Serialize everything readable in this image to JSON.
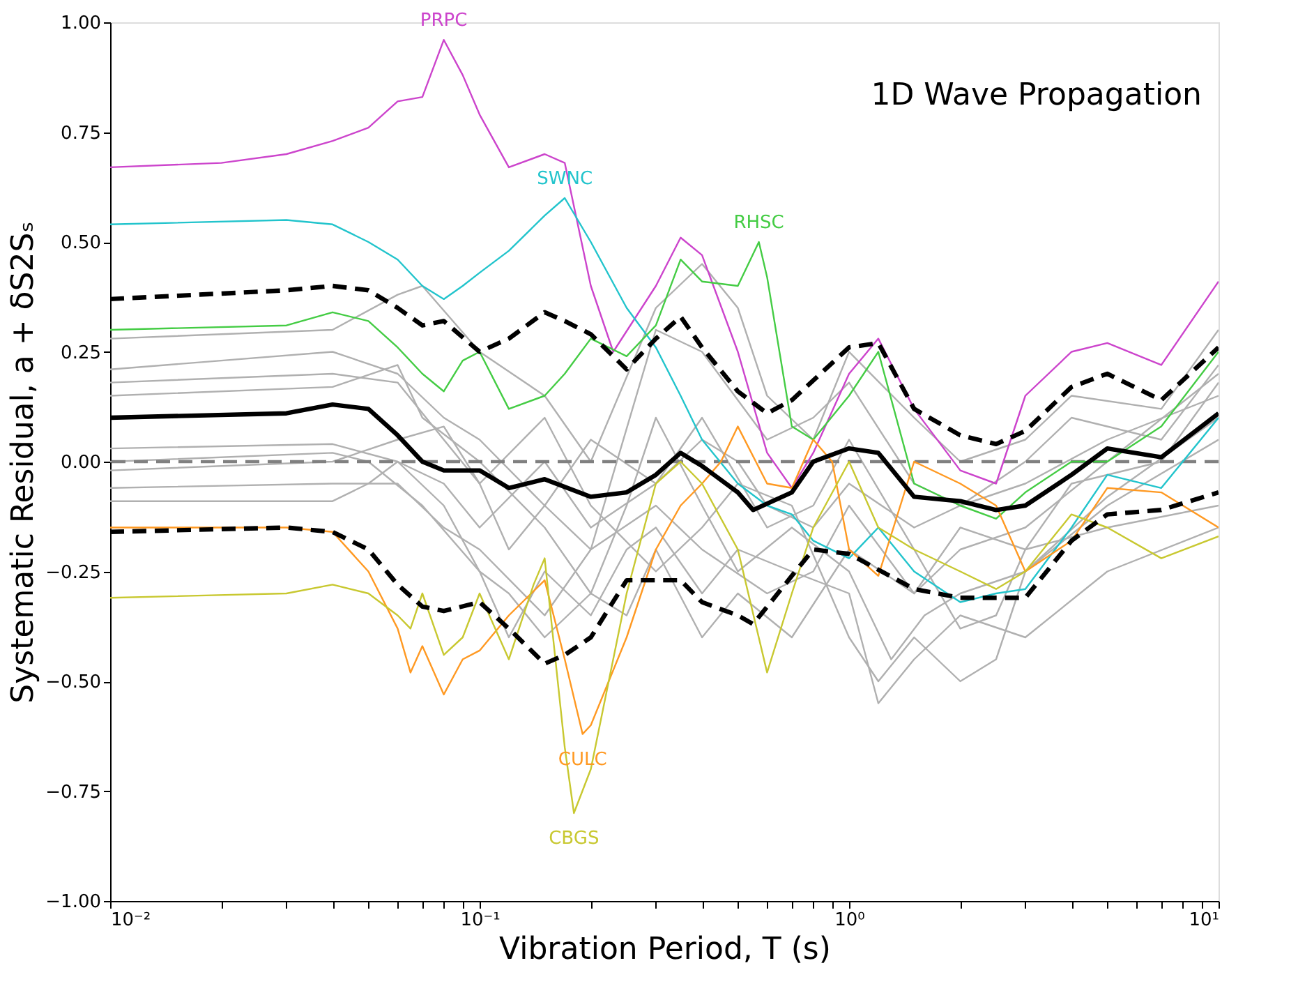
{
  "chart_data": {
    "type": "line",
    "xlabel": "Vibration Period, T (s)",
    "ylabel": "Systematic Residual, a + δS2Sₛ",
    "annotations": [
      "1D Wave Propagation"
    ],
    "log": "x",
    "grid": false,
    "marker": "none",
    "xlim": [
      0.01,
      10
    ],
    "xticks": [
      {
        "value": 0.01,
        "label": "10⁻²"
      },
      {
        "value": 0.02,
        "label": null
      },
      {
        "value": 0.03,
        "label": null
      },
      {
        "value": 0.04,
        "label": null
      },
      {
        "value": 0.05,
        "label": null
      },
      {
        "value": 0.06,
        "label": null
      },
      {
        "value": 0.07,
        "label": null
      },
      {
        "value": 0.08,
        "label": null
      },
      {
        "value": 0.09,
        "label": null
      },
      {
        "value": 0.1,
        "label": "10⁻¹"
      },
      {
        "value": 0.2,
        "label": null
      },
      {
        "value": 0.3,
        "label": null
      },
      {
        "value": 0.4,
        "label": null
      },
      {
        "value": 0.5,
        "label": null
      },
      {
        "value": 0.6,
        "label": null
      },
      {
        "value": 0.7,
        "label": null
      },
      {
        "value": 0.8,
        "label": null
      },
      {
        "value": 0.9,
        "label": null
      },
      {
        "value": 1,
        "label": "10⁰"
      },
      {
        "value": 2,
        "label": null
      },
      {
        "value": 3,
        "label": null
      },
      {
        "value": 4,
        "label": null
      },
      {
        "value": 5,
        "label": null
      },
      {
        "value": 6,
        "label": null
      },
      {
        "value": 7,
        "label": null
      },
      {
        "value": 8,
        "label": null
      },
      {
        "value": 9,
        "label": null
      },
      {
        "value": 10,
        "label": "10¹"
      }
    ],
    "ylim": [
      -1,
      1
    ],
    "yticks": [
      {
        "value": -1,
        "label": "−1.00"
      },
      {
        "value": -0.75,
        "label": "−0.75"
      },
      {
        "value": -0.5,
        "label": "−0.50"
      },
      {
        "value": -0.25,
        "label": "−0.25"
      },
      {
        "value": 0,
        "label": "0.00"
      },
      {
        "value": 0.25,
        "label": "0.25"
      },
      {
        "value": 0.5,
        "label": "0.50"
      },
      {
        "value": 0.75,
        "label": "0.75"
      },
      {
        "value": 1,
        "label": "1.00"
      }
    ],
    "ref_lines": [
      {
        "axis": "y",
        "value": 0,
        "color": "#808080",
        "line_style": "dashed"
      }
    ],
    "series": [
      {
        "color": "#b0b0b0",
        "x": [
          0.01,
          0.04,
          0.06,
          0.07,
          0.1,
          0.15,
          0.2,
          0.3,
          0.4,
          0.5,
          0.6,
          0.8,
          1.0,
          1.5,
          2,
          3,
          4,
          7,
          10
        ],
        "values": [
          0.28,
          0.3,
          0.38,
          0.4,
          0.25,
          0.15,
          0.0,
          0.35,
          0.45,
          0.35,
          0.15,
          0.05,
          0.25,
          0.1,
          0.0,
          0.05,
          0.15,
          0.12,
          0.3
        ]
      },
      {
        "color": "#b0b0b0",
        "x": [
          0.01,
          0.04,
          0.06,
          0.08,
          0.1,
          0.15,
          0.2,
          0.3,
          0.4,
          0.6,
          0.8,
          1.0,
          1.5,
          2,
          3,
          4,
          7,
          10
        ],
        "values": [
          0.21,
          0.25,
          0.2,
          0.1,
          0.05,
          -0.1,
          -0.2,
          0.3,
          0.25,
          0.05,
          0.1,
          0.18,
          -0.05,
          -0.1,
          0.0,
          0.1,
          0.05,
          0.22
        ]
      },
      {
        "color": "#b0b0b0",
        "x": [
          0.01,
          0.04,
          0.06,
          0.08,
          0.1,
          0.12,
          0.15,
          0.2,
          0.3,
          0.4,
          0.6,
          0.8,
          1.0,
          1.5,
          2,
          2.5,
          3,
          4,
          7,
          10
        ],
        "values": [
          0.18,
          0.2,
          0.18,
          0.05,
          -0.05,
          -0.2,
          -0.1,
          0.05,
          -0.05,
          0.1,
          -0.15,
          -0.1,
          0.05,
          -0.2,
          -0.38,
          -0.35,
          -0.2,
          -0.05,
          0.0,
          0.18
        ]
      },
      {
        "color": "#b0b0b0",
        "x": [
          0.01,
          0.04,
          0.06,
          0.07,
          0.1,
          0.15,
          0.2,
          0.25,
          0.3,
          0.4,
          0.5,
          0.7,
          1.0,
          1.3,
          1.6,
          2,
          3,
          5,
          10
        ],
        "values": [
          0.15,
          0.17,
          0.22,
          0.1,
          0.0,
          -0.15,
          -0.3,
          -0.1,
          0.1,
          -0.1,
          -0.25,
          -0.15,
          -0.25,
          -0.45,
          -0.35,
          -0.3,
          -0.25,
          -0.1,
          0.05
        ]
      },
      {
        "color": "#b0b0b0",
        "x": [
          0.01,
          0.04,
          0.06,
          0.08,
          0.1,
          0.12,
          0.15,
          0.2,
          0.25,
          0.3,
          0.4,
          0.5,
          0.7,
          1.0,
          1.2,
          1.5,
          2,
          3,
          5,
          10
        ],
        "values": [
          0.03,
          0.04,
          0.0,
          -0.1,
          -0.25,
          -0.4,
          -0.25,
          -0.35,
          -0.2,
          -0.15,
          -0.3,
          -0.2,
          -0.25,
          -0.3,
          -0.55,
          -0.45,
          -0.35,
          -0.4,
          -0.25,
          -0.15
        ]
      },
      {
        "color": "#b0b0b0",
        "x": [
          0.01,
          0.04,
          0.06,
          0.08,
          0.1,
          0.15,
          0.2,
          0.3,
          0.4,
          0.5,
          0.7,
          1.0,
          1.2,
          1.5,
          2,
          2.5,
          3,
          5,
          10
        ],
        "values": [
          -0.02,
          0.0,
          0.05,
          0.08,
          -0.05,
          0.1,
          -0.1,
          -0.25,
          -0.15,
          -0.05,
          -0.1,
          -0.4,
          -0.5,
          -0.4,
          -0.5,
          -0.45,
          -0.25,
          -0.08,
          0.1
        ]
      },
      {
        "color": "#b0b0b0",
        "x": [
          0.01,
          0.04,
          0.06,
          0.08,
          0.1,
          0.15,
          0.2,
          0.3,
          0.4,
          0.6,
          0.8,
          1.0,
          1.5,
          2,
          3,
          5,
          10
        ],
        "values": [
          -0.06,
          -0.05,
          -0.05,
          -0.15,
          -0.2,
          -0.35,
          -0.2,
          -0.1,
          -0.2,
          -0.3,
          -0.25,
          -0.1,
          -0.3,
          -0.2,
          -0.15,
          0.0,
          0.2
        ]
      },
      {
        "color": "#b0b0b0",
        "x": [
          0.01,
          0.04,
          0.05,
          0.06,
          0.08,
          0.1,
          0.15,
          0.2,
          0.3,
          0.4,
          0.5,
          0.6,
          0.8,
          1.0,
          1.5,
          2,
          3,
          5,
          10
        ],
        "values": [
          -0.09,
          -0.09,
          -0.05,
          0.0,
          -0.05,
          -0.15,
          0.0,
          -0.15,
          -0.05,
          0.05,
          0.0,
          -0.1,
          -0.15,
          -0.05,
          -0.15,
          -0.1,
          -0.05,
          0.05,
          0.15
        ]
      },
      {
        "color": "#b0b0b0",
        "x": [
          0.01,
          0.04,
          0.05,
          0.07,
          0.1,
          0.12,
          0.15,
          0.2,
          0.25,
          0.3,
          0.4,
          0.5,
          0.7,
          1.0,
          1.5,
          2,
          3,
          5,
          10
        ],
        "values": [
          0.0,
          0.02,
          0.0,
          -0.1,
          -0.25,
          -0.3,
          -0.4,
          -0.3,
          -0.35,
          -0.2,
          -0.4,
          -0.3,
          -0.4,
          -0.2,
          -0.3,
          -0.15,
          -0.2,
          -0.15,
          -0.1
        ]
      },
      {
        "name": "PRPC",
        "color": "#cc44cc",
        "x": [
          0.01,
          0.02,
          0.03,
          0.04,
          0.05,
          0.06,
          0.07,
          0.08,
          0.09,
          0.1,
          0.12,
          0.15,
          0.17,
          0.2,
          0.23,
          0.3,
          0.35,
          0.4,
          0.5,
          0.6,
          0.7,
          0.8,
          1.0,
          1.2,
          1.5,
          2,
          2.5,
          3,
          4,
          5,
          7,
          10
        ],
        "values": [
          0.67,
          0.68,
          0.7,
          0.73,
          0.76,
          0.82,
          0.83,
          0.96,
          0.88,
          0.79,
          0.67,
          0.7,
          0.68,
          0.4,
          0.25,
          0.4,
          0.51,
          0.47,
          0.25,
          0.02,
          -0.06,
          0.02,
          0.2,
          0.28,
          0.12,
          -0.02,
          -0.05,
          0.15,
          0.25,
          0.27,
          0.22,
          0.41
        ]
      },
      {
        "name": "SWNC",
        "color": "#22c4cc",
        "x": [
          0.01,
          0.03,
          0.04,
          0.05,
          0.06,
          0.07,
          0.08,
          0.09,
          0.1,
          0.12,
          0.15,
          0.17,
          0.2,
          0.25,
          0.3,
          0.35,
          0.4,
          0.5,
          0.6,
          0.7,
          0.8,
          1.0,
          1.2,
          1.5,
          2,
          2.5,
          3,
          4,
          5,
          7,
          10
        ],
        "values": [
          0.54,
          0.55,
          0.54,
          0.5,
          0.46,
          0.4,
          0.37,
          0.4,
          0.43,
          0.48,
          0.56,
          0.6,
          0.5,
          0.35,
          0.26,
          0.15,
          0.05,
          -0.05,
          -0.1,
          -0.12,
          -0.18,
          -0.22,
          -0.15,
          -0.25,
          -0.32,
          -0.3,
          -0.29,
          -0.15,
          -0.03,
          -0.06,
          0.1
        ]
      },
      {
        "name": "RHSC",
        "color": "#44cc44",
        "x": [
          0.01,
          0.03,
          0.04,
          0.05,
          0.06,
          0.07,
          0.08,
          0.09,
          0.1,
          0.12,
          0.15,
          0.17,
          0.2,
          0.25,
          0.3,
          0.35,
          0.4,
          0.5,
          0.57,
          0.6,
          0.7,
          0.8,
          1.0,
          1.2,
          1.5,
          2,
          2.5,
          3,
          4,
          5,
          7,
          10
        ],
        "values": [
          0.3,
          0.31,
          0.34,
          0.32,
          0.26,
          0.2,
          0.16,
          0.23,
          0.25,
          0.12,
          0.15,
          0.2,
          0.28,
          0.24,
          0.31,
          0.46,
          0.41,
          0.4,
          0.5,
          0.42,
          0.08,
          0.05,
          0.15,
          0.25,
          -0.05,
          -0.1,
          -0.13,
          -0.07,
          0.0,
          0.0,
          0.08,
          0.25
        ]
      },
      {
        "name": "CULC",
        "color": "#ff9922",
        "x": [
          0.01,
          0.03,
          0.04,
          0.05,
          0.06,
          0.065,
          0.07,
          0.08,
          0.09,
          0.1,
          0.12,
          0.15,
          0.17,
          0.19,
          0.2,
          0.25,
          0.3,
          0.35,
          0.4,
          0.45,
          0.5,
          0.6,
          0.7,
          0.8,
          0.9,
          1.0,
          1.2,
          1.5,
          2,
          2.5,
          3,
          4,
          5,
          7,
          10
        ],
        "values": [
          -0.15,
          -0.15,
          -0.16,
          -0.25,
          -0.38,
          -0.48,
          -0.42,
          -0.53,
          -0.45,
          -0.43,
          -0.35,
          -0.27,
          -0.45,
          -0.62,
          -0.6,
          -0.4,
          -0.2,
          -0.1,
          -0.05,
          0.0,
          0.08,
          -0.05,
          -0.06,
          0.05,
          0.0,
          -0.2,
          -0.26,
          0.0,
          -0.05,
          -0.1,
          -0.25,
          -0.18,
          -0.06,
          -0.07,
          -0.15
        ]
      },
      {
        "name": "CBGS",
        "color": "#c8c830",
        "x": [
          0.01,
          0.03,
          0.04,
          0.05,
          0.06,
          0.065,
          0.07,
          0.08,
          0.09,
          0.1,
          0.12,
          0.14,
          0.15,
          0.17,
          0.18,
          0.2,
          0.25,
          0.3,
          0.35,
          0.4,
          0.5,
          0.6,
          0.7,
          0.8,
          1.0,
          1.2,
          1.5,
          2,
          2.5,
          3,
          4,
          5,
          7,
          10
        ],
        "values": [
          -0.31,
          -0.3,
          -0.28,
          -0.3,
          -0.35,
          -0.38,
          -0.3,
          -0.44,
          -0.4,
          -0.3,
          -0.45,
          -0.28,
          -0.22,
          -0.65,
          -0.8,
          -0.7,
          -0.3,
          -0.05,
          0.0,
          -0.05,
          -0.2,
          -0.48,
          -0.3,
          -0.15,
          0.0,
          -0.15,
          -0.2,
          -0.25,
          -0.29,
          -0.25,
          -0.12,
          -0.15,
          -0.22,
          -0.17
        ]
      },
      {
        "color": "#000000",
        "line_style": "dashed",
        "x": [
          0.01,
          0.03,
          0.04,
          0.05,
          0.06,
          0.07,
          0.08,
          0.1,
          0.12,
          0.15,
          0.17,
          0.2,
          0.25,
          0.3,
          0.35,
          0.4,
          0.5,
          0.6,
          0.7,
          1.0,
          1.2,
          1.5,
          2,
          2.5,
          3,
          4,
          5,
          7,
          10
        ],
        "values": [
          0.37,
          0.39,
          0.4,
          0.39,
          0.35,
          0.31,
          0.32,
          0.25,
          0.28,
          0.34,
          0.32,
          0.29,
          0.21,
          0.28,
          0.33,
          0.26,
          0.16,
          0.11,
          0.14,
          0.26,
          0.27,
          0.12,
          0.06,
          0.04,
          0.07,
          0.17,
          0.2,
          0.14,
          0.26
        ]
      },
      {
        "color": "#000000",
        "line_style": "dashed",
        "x": [
          0.01,
          0.03,
          0.04,
          0.05,
          0.06,
          0.07,
          0.08,
          0.1,
          0.12,
          0.15,
          0.17,
          0.2,
          0.25,
          0.3,
          0.35,
          0.4,
          0.5,
          0.55,
          0.7,
          0.8,
          1.0,
          1.5,
          2,
          3,
          4,
          5,
          7,
          10
        ],
        "values": [
          -0.16,
          -0.15,
          -0.16,
          -0.2,
          -0.28,
          -0.33,
          -0.34,
          -0.32,
          -0.38,
          -0.46,
          -0.44,
          -0.4,
          -0.27,
          -0.27,
          -0.27,
          -0.32,
          -0.35,
          -0.37,
          -0.26,
          -0.2,
          -0.21,
          -0.29,
          -0.31,
          -0.31,
          -0.18,
          -0.12,
          -0.11,
          -0.07
        ]
      },
      {
        "color": "#000000",
        "line_style": "solid",
        "x": [
          0.01,
          0.03,
          0.04,
          0.05,
          0.06,
          0.07,
          0.08,
          0.1,
          0.12,
          0.15,
          0.2,
          0.25,
          0.3,
          0.35,
          0.4,
          0.5,
          0.55,
          0.7,
          0.8,
          1.0,
          1.2,
          1.5,
          2,
          2.5,
          3,
          4,
          5,
          7,
          10
        ],
        "values": [
          0.1,
          0.11,
          0.13,
          0.12,
          0.06,
          0.0,
          -0.02,
          -0.02,
          -0.06,
          -0.04,
          -0.08,
          -0.07,
          -0.03,
          0.02,
          -0.01,
          -0.07,
          -0.11,
          -0.07,
          0.0,
          0.03,
          0.02,
          -0.08,
          -0.09,
          -0.11,
          -0.1,
          -0.03,
          0.03,
          0.01,
          0.11
        ]
      }
    ]
  }
}
